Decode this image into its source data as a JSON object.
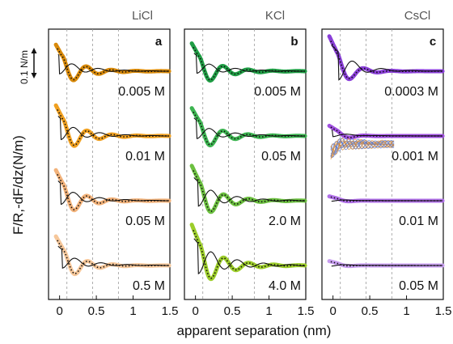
{
  "figure": {
    "ylabel": "F/R,-dF/dz(N/m)",
    "xlabel": "apparent separation (nm)",
    "scale_bar_label": "0.1 N/m"
  },
  "chart_data": [
    {
      "type": "line",
      "panel": "a",
      "salt": "LiCl",
      "xlim": [
        -0.15,
        1.5
      ],
      "xticks": [
        0,
        0.5,
        1,
        1.5
      ],
      "xtick_labels": [
        "0",
        "0.5",
        "1",
        "1.5"
      ],
      "dashed_gridlines_x": [
        0.1,
        0.45,
        0.8
      ],
      "traces": [
        {
          "label": "0.005 M",
          "color": "#d98a0a",
          "A": 1.0,
          "B": 0.55,
          "period": 0.34,
          "phase": 0.03,
          "decay": 0.28,
          "peak": 0.1,
          "offset_y": 0.0
        },
        {
          "label": "0.01 M",
          "color": "#f0a020",
          "A": 1.1,
          "B": 0.6,
          "period": 0.34,
          "phase": 0.04,
          "decay": 0.28,
          "peak": 0.12,
          "offset_y": 1.0
        },
        {
          "label": "0.05 M",
          "color": "#f2b27a",
          "A": 1.1,
          "B": 0.6,
          "period": 0.34,
          "phase": 0.04,
          "decay": 0.26,
          "peak": 0.12,
          "offset_y": 2.0
        },
        {
          "label": "0.5 M",
          "color": "#f6c79a",
          "A": 1.0,
          "B": 0.55,
          "period": 0.34,
          "phase": 0.05,
          "decay": 0.26,
          "peak": 0.14,
          "offset_y": 3.0
        }
      ]
    },
    {
      "type": "line",
      "panel": "b",
      "salt": "KCl",
      "xlim": [
        -0.15,
        1.5
      ],
      "xticks": [
        0,
        0.5,
        1,
        1.5
      ],
      "xtick_labels": [
        "0",
        "0.5",
        "1",
        "1.5"
      ],
      "dashed_gridlines_x": [
        0.1,
        0.45,
        0.8
      ],
      "traces": [
        {
          "label": "0.005 M",
          "color": "#1f9e45",
          "A": 1.0,
          "B": 0.5,
          "period": 0.34,
          "phase": 0.04,
          "decay": 0.3,
          "peak": 0.12,
          "offset_y": 0.0
        },
        {
          "label": "0.05 M",
          "color": "#3cb450",
          "A": 1.0,
          "B": 0.55,
          "period": 0.34,
          "phase": 0.04,
          "decay": 0.3,
          "peak": 0.12,
          "offset_y": 0.8
        },
        {
          "label": "2.0 M",
          "color": "#6cc040",
          "A": 1.2,
          "B": 0.7,
          "period": 0.34,
          "phase": 0.05,
          "decay": 0.3,
          "peak": 0.14,
          "offset_y": 1.9
        },
        {
          "label": "4.0 M",
          "color": "#9ccd2a",
          "A": 1.4,
          "B": 0.8,
          "period": 0.34,
          "phase": 0.05,
          "decay": 0.32,
          "peak": 0.14,
          "offset_y": 3.1
        }
      ]
    },
    {
      "type": "line",
      "panel": "c",
      "salt": "CsCl",
      "xlim": [
        -0.15,
        1.5
      ],
      "xticks": [
        0,
        0.5,
        1,
        1.5
      ],
      "xtick_labels": [
        "0",
        "0.5",
        "1",
        "1.5"
      ],
      "dashed_gridlines_x": [
        0.1,
        0.45,
        0.8
      ],
      "traces": [
        {
          "label": "0.0003 M",
          "color": "#8a3fd8",
          "A": 1.2,
          "B": 0.9,
          "period": 0.38,
          "phase": 0.05,
          "decay": 0.2,
          "peak": 0.18,
          "offset_y": 0.0
        },
        {
          "label": "0.001 M",
          "color": "#a050e0",
          "A": 0.35,
          "B": 0.5,
          "period": 0.4,
          "phase": 0.05,
          "decay": 0.15,
          "peak": 0.1,
          "offset_y": 1.3
        },
        {
          "label": "0.01 M",
          "color": "#b070e8",
          "A": 0.15,
          "B": 0.6,
          "period": 0.4,
          "phase": 0.05,
          "decay": 0.12,
          "peak": 0.08,
          "offset_y": 2.3
        },
        {
          "label": "0.05 M",
          "color": "#c89ef0",
          "A": 0.15,
          "B": 0.7,
          "period": 0.4,
          "phase": 0.05,
          "decay": 0.12,
          "peak": 0.08,
          "offset_y": 3.2
        }
      ],
      "raw_overlay_colors": [
        "#4a78e0",
        "#e08a2a"
      ]
    }
  ]
}
